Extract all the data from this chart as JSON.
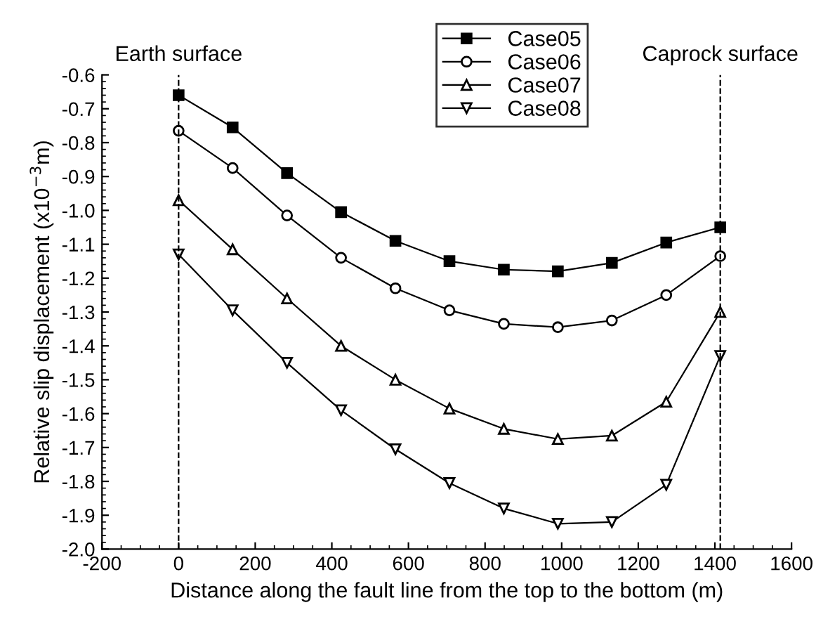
{
  "chart_data": {
    "type": "line",
    "xlabel": "Distance along the fault line from the top to the bottom (m)",
    "ylabel": "Relative slip displacement (x10$^{−3}$m)",
    "x": [
      0,
      141,
      283,
      424,
      566,
      707,
      849,
      990,
      1131,
      1273,
      1414
    ],
    "series": [
      {
        "name": "Case05",
        "color": "#000000",
        "marker": "square",
        "values": [
          -0.66,
          -0.755,
          -0.89,
          -1.005,
          -1.09,
          -1.15,
          -1.175,
          -1.18,
          -1.155,
          -1.095,
          -1.05
        ]
      },
      {
        "name": "Case06",
        "color": "#000000",
        "marker": "circle",
        "values": [
          -0.765,
          -0.875,
          -1.015,
          -1.14,
          -1.23,
          -1.295,
          -1.335,
          -1.345,
          -1.325,
          -1.25,
          -1.135
        ]
      },
      {
        "name": "Case07",
        "color": "#000000",
        "marker": "triangle",
        "values": [
          -0.97,
          -1.115,
          -1.26,
          -1.4,
          -1.5,
          -1.585,
          -1.645,
          -1.675,
          -1.665,
          -1.565,
          -1.3
        ]
      },
      {
        "name": "Case08",
        "color": "#000000",
        "marker": "triangle-down",
        "values": [
          -1.13,
          -1.295,
          -1.45,
          -1.59,
          -1.705,
          -1.805,
          -1.88,
          -1.925,
          -1.92,
          -1.81,
          -1.43
        ]
      }
    ],
    "xlim": [
      -200,
      1600
    ],
    "xticks": [
      -200,
      0,
      200,
      400,
      600,
      800,
      1000,
      1200,
      1400,
      1600
    ],
    "ylim": [
      -2.0,
      -0.6
    ],
    "yticks": [
      {
        "value": -2,
        "label": "-2.0"
      },
      -1.9,
      -1.8,
      -1.7,
      -1.6,
      -1.5,
      -1.4,
      -1.3,
      -1.2,
      -1.1,
      {
        "value": -1,
        "label": "-1.0"
      },
      -0.9,
      -0.8,
      -0.7,
      -0.6
    ],
    "ref_lines": [
      {
        "axis": "x",
        "value": 0,
        "label": "Earth surface",
        "line_style": "dashed"
      },
      {
        "axis": "x",
        "value": 1414,
        "label": "Caprock surface",
        "line_style": "dashed"
      }
    ],
    "legend": "top right",
    "grid": false,
    "line_style": "solid"
  }
}
